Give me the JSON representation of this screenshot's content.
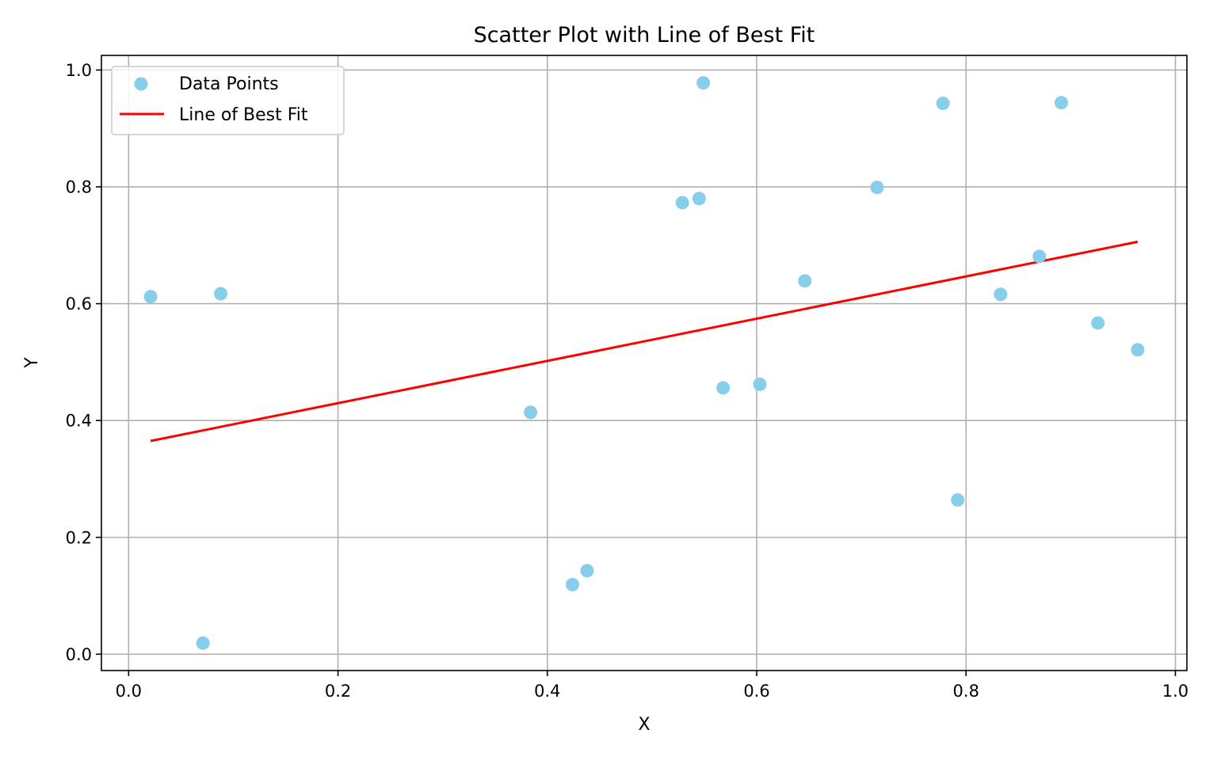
{
  "chart_data": {
    "type": "scatter",
    "title": "Scatter Plot with Line of Best Fit",
    "xlabel": "X",
    "ylabel": "Y",
    "xlim": [
      -0.026,
      1.011
    ],
    "ylim": [
      -0.028,
      1.025
    ],
    "xticks": [
      "0.0",
      "0.2",
      "0.4",
      "0.6",
      "0.8",
      "1.0"
    ],
    "xtick_values": [
      0.0,
      0.2,
      0.4,
      0.6,
      0.8,
      1.0
    ],
    "yticks": [
      "0.0",
      "0.2",
      "0.4",
      "0.6",
      "0.8",
      "1.0"
    ],
    "ytick_values": [
      0.0,
      0.2,
      0.4,
      0.6,
      0.8,
      1.0
    ],
    "grid": true,
    "legend_position": "upper-left",
    "series": [
      {
        "name": "Data Points",
        "kind": "scatter",
        "color": "#87ceeb",
        "points": [
          {
            "x": 0.021,
            "y": 0.612
          },
          {
            "x": 0.071,
            "y": 0.019
          },
          {
            "x": 0.088,
            "y": 0.617
          },
          {
            "x": 0.384,
            "y": 0.414
          },
          {
            "x": 0.424,
            "y": 0.119
          },
          {
            "x": 0.438,
            "y": 0.143
          },
          {
            "x": 0.529,
            "y": 0.773
          },
          {
            "x": 0.545,
            "y": 0.78
          },
          {
            "x": 0.549,
            "y": 0.978
          },
          {
            "x": 0.568,
            "y": 0.456
          },
          {
            "x": 0.603,
            "y": 0.462
          },
          {
            "x": 0.646,
            "y": 0.639
          },
          {
            "x": 0.715,
            "y": 0.799
          },
          {
            "x": 0.778,
            "y": 0.943
          },
          {
            "x": 0.792,
            "y": 0.264
          },
          {
            "x": 0.833,
            "y": 0.616
          },
          {
            "x": 0.87,
            "y": 0.681
          },
          {
            "x": 0.891,
            "y": 0.944
          },
          {
            "x": 0.926,
            "y": 0.567
          },
          {
            "x": 0.964,
            "y": 0.521
          }
        ]
      },
      {
        "name": "Line of Best Fit",
        "kind": "line",
        "color": "#ff0000",
        "points": [
          {
            "x": 0.021,
            "y": 0.365
          },
          {
            "x": 0.964,
            "y": 0.706
          }
        ]
      }
    ]
  }
}
